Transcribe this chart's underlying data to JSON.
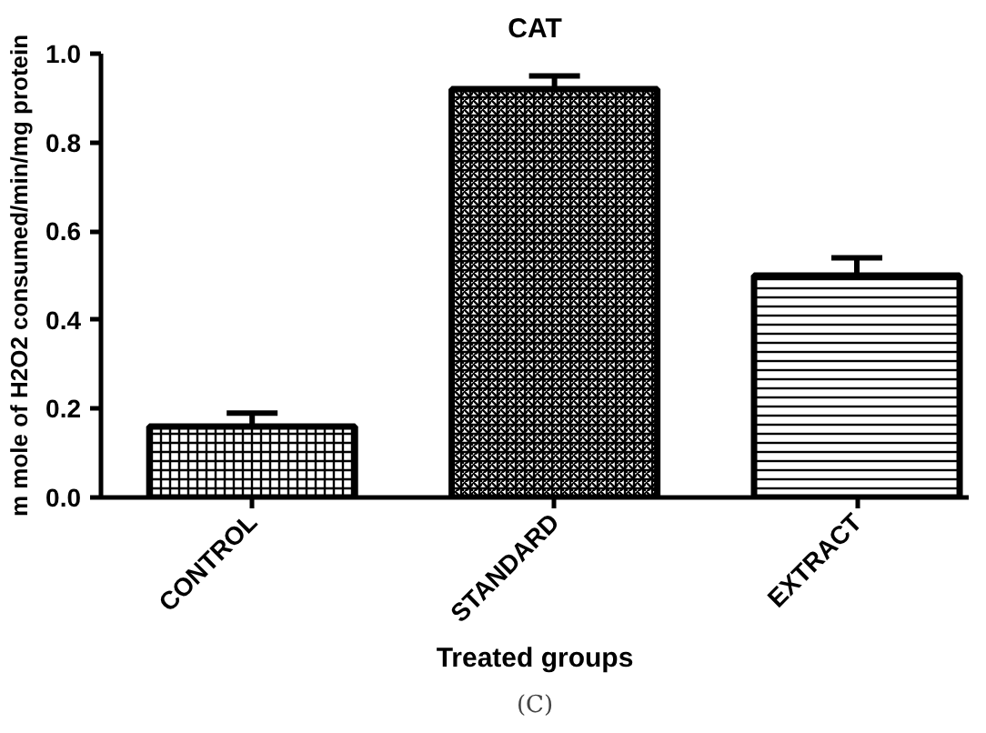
{
  "chart_data": {
    "type": "bar",
    "title": "CAT",
    "xlabel": "Treated groups",
    "ylabel": "m mole of H2O2 consumed/min/mg protein",
    "categories": [
      "CONTROL",
      "STANDARD",
      "EXTRACT"
    ],
    "values": [
      0.16,
      0.92,
      0.5
    ],
    "errors": [
      [
        0.16,
        0.19
      ],
      [
        0.92,
        0.95
      ],
      [
        0.5,
        0.54
      ]
    ],
    "color": "#000000",
    "ylim": [
      0,
      1.0
    ],
    "yticks": [
      {
        "value": 0,
        "label": "0.0"
      },
      {
        "value": 0.2,
        "label": "0.2"
      },
      {
        "value": 0.4,
        "label": "0.4"
      },
      {
        "value": 0.6,
        "label": "0.6"
      },
      {
        "value": 0.8,
        "label": "0.8"
      },
      {
        "value": 1.0,
        "label": "1.0"
      }
    ],
    "grid": false,
    "annotations": [
      "(C)"
    ]
  }
}
